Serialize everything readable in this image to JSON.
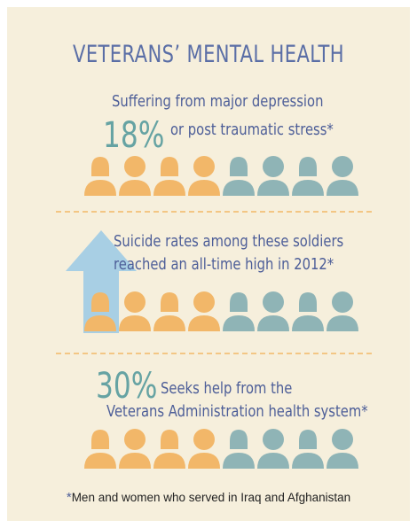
{
  "title": "VETERANS’ MENTAL HEALTH",
  "colors": {
    "background": "#f6efdc",
    "text": "#4d5e98",
    "percent": "#66a3a3",
    "orange": "#f2b769",
    "teal": "#8fb4b6",
    "arrow": "#a8cfe4",
    "divider": "#f3c684"
  },
  "section1": {
    "percent": "18%",
    "line1": "Suffering from major depression",
    "line2": "or post traumatic stress",
    "asterisk": "*"
  },
  "section2": {
    "line1": "Suicide rates among these soldiers",
    "line2": "reached an all-time high in 2012",
    "asterisk": "*"
  },
  "section3": {
    "percent": "30%",
    "line1": "Seeks help from the",
    "line2": "Veterans Administration health system",
    "asterisk": "*"
  },
  "people_icons": [
    "female-icon",
    "male-icon",
    "female-icon",
    "male-icon",
    "female-icon",
    "male-icon",
    "female-icon",
    "male-icon"
  ],
  "footnote": {
    "asterisk": "*",
    "text": "Men and women who served in Iraq and Afghanistan"
  }
}
